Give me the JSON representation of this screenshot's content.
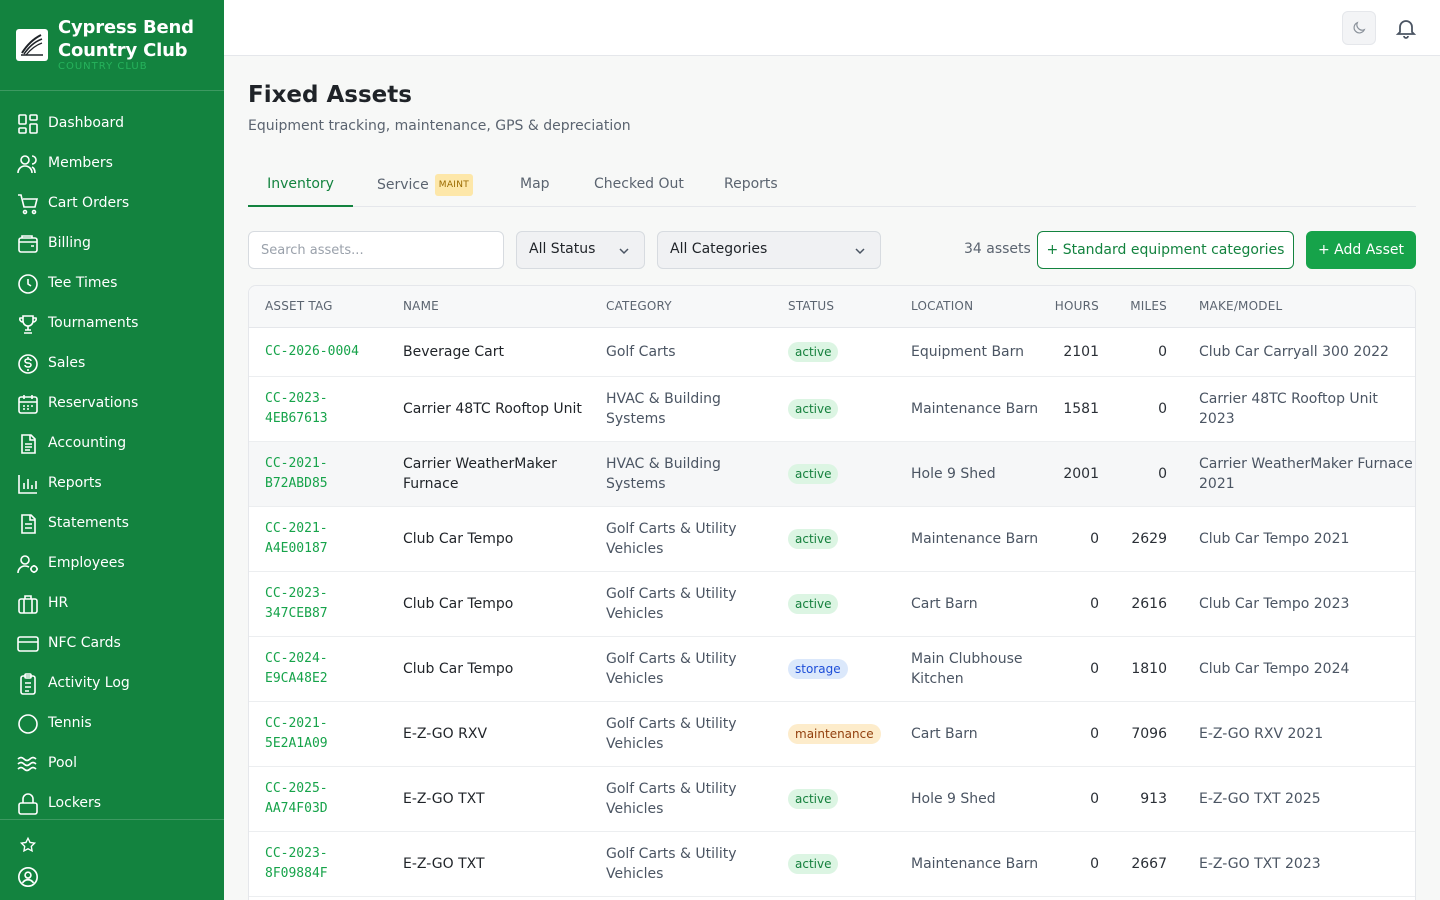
{
  "brand": {
    "name": "Cypress Bend Country Club",
    "subtitle": "COUNTRY CLUB"
  },
  "nav": [
    {
      "label": "Dashboard",
      "icon": "dashboard-icon"
    },
    {
      "label": "Members",
      "icon": "members-icon"
    },
    {
      "label": "Cart Orders",
      "icon": "cart-icon"
    },
    {
      "label": "Billing",
      "icon": "wallet-icon"
    },
    {
      "label": "Tee Times",
      "icon": "clock-icon"
    },
    {
      "label": "Tournaments",
      "icon": "trophy-icon"
    },
    {
      "label": "Sales",
      "icon": "dollar-icon"
    },
    {
      "label": "Reservations",
      "icon": "calendar-icon"
    },
    {
      "label": "Accounting",
      "icon": "document-icon"
    },
    {
      "label": "Reports",
      "icon": "bar-chart-icon"
    },
    {
      "label": "Statements",
      "icon": "statement-icon"
    },
    {
      "label": "Employees",
      "icon": "employees-icon"
    },
    {
      "label": "HR",
      "icon": "briefcase-icon"
    },
    {
      "label": "NFC Cards",
      "icon": "card-icon"
    },
    {
      "label": "Activity Log",
      "icon": "clipboard-icon"
    },
    {
      "label": "Tennis",
      "icon": "tennis-icon"
    },
    {
      "label": "Pool",
      "icon": "waves-icon"
    },
    {
      "label": "Lockers",
      "icon": "lock-icon"
    }
  ],
  "page": {
    "title": "Fixed Assets",
    "subtitle": "Equipment tracking, maintenance, GPS & depreciation"
  },
  "tabs": [
    {
      "label": "Inventory",
      "active": true
    },
    {
      "label": "Service",
      "badge": "MAINT"
    },
    {
      "label": "Map"
    },
    {
      "label": "Checked Out"
    },
    {
      "label": "Reports"
    }
  ],
  "toolbar": {
    "search_placeholder": "Search assets...",
    "status_filter": "All Status",
    "category_filter": "All Categories",
    "asset_count": "34 assets",
    "categories_button": "+ Standard equipment categories",
    "add_button": "+ Add Asset"
  },
  "colors": {
    "brand": "#13833f",
    "accent": "#16a34a"
  },
  "status_styles": {
    "active": {
      "bg": "#dcf5e3",
      "fg": "#15803d"
    },
    "storage": {
      "bg": "#dbe8fb",
      "fg": "#1d4ed8"
    },
    "maintenance": {
      "bg": "#fdeccb",
      "fg": "#92400e"
    }
  },
  "table": {
    "columns": [
      "ASSET TAG",
      "NAME",
      "CATEGORY",
      "STATUS",
      "LOCATION",
      "HOURS",
      "MILES",
      "MAKE/MODEL"
    ],
    "rows": [
      {
        "tag": "CC-2026-0004",
        "name": "Beverage Cart",
        "category": "Golf Carts",
        "status": "active",
        "location": "Equipment Barn",
        "hours": "2101",
        "miles": "0",
        "make": "Club Car Carryall 300 2022"
      },
      {
        "tag": "CC-2023-4EB67613",
        "name": "Carrier 48TC Rooftop Unit",
        "category": "HVAC & Building Systems",
        "status": "active",
        "location": "Maintenance Barn",
        "hours": "1581",
        "miles": "0",
        "make": "Carrier 48TC Rooftop Unit 2023"
      },
      {
        "tag": "CC-2021-B72ABD85",
        "name": "Carrier WeatherMaker Furnace",
        "category": "HVAC & Building Systems",
        "status": "active",
        "location": "Hole 9 Shed",
        "hours": "2001",
        "miles": "0",
        "make": "Carrier WeatherMaker Furnace 2021"
      },
      {
        "tag": "CC-2021-A4E00187",
        "name": "Club Car Tempo",
        "category": "Golf Carts & Utility Vehicles",
        "status": "active",
        "location": "Maintenance Barn",
        "hours": "0",
        "miles": "2629",
        "make": "Club Car Tempo 2021"
      },
      {
        "tag": "CC-2023-347CEB87",
        "name": "Club Car Tempo",
        "category": "Golf Carts & Utility Vehicles",
        "status": "active",
        "location": "Cart Barn",
        "hours": "0",
        "miles": "2616",
        "make": "Club Car Tempo 2023"
      },
      {
        "tag": "CC-2024-E9CA48E2",
        "name": "Club Car Tempo",
        "category": "Golf Carts & Utility Vehicles",
        "status": "storage",
        "location": "Main Clubhouse Kitchen",
        "hours": "0",
        "miles": "1810",
        "make": "Club Car Tempo 2024"
      },
      {
        "tag": "CC-2021-5E2A1A09",
        "name": "E-Z-GO RXV",
        "category": "Golf Carts & Utility Vehicles",
        "status": "maintenance",
        "location": "Cart Barn",
        "hours": "0",
        "miles": "7096",
        "make": "E-Z-GO RXV 2021"
      },
      {
        "tag": "CC-2025-AA74F03D",
        "name": "E-Z-GO TXT",
        "category": "Golf Carts & Utility Vehicles",
        "status": "active",
        "location": "Hole 9 Shed",
        "hours": "0",
        "miles": "913",
        "make": "E-Z-GO TXT 2025"
      },
      {
        "tag": "CC-2023-8F09884F",
        "name": "E-Z-GO TXT",
        "category": "Golf Carts & Utility Vehicles",
        "status": "active",
        "location": "Maintenance Barn",
        "hours": "0",
        "miles": "2667",
        "make": "E-Z-GO TXT 2023"
      }
    ]
  }
}
